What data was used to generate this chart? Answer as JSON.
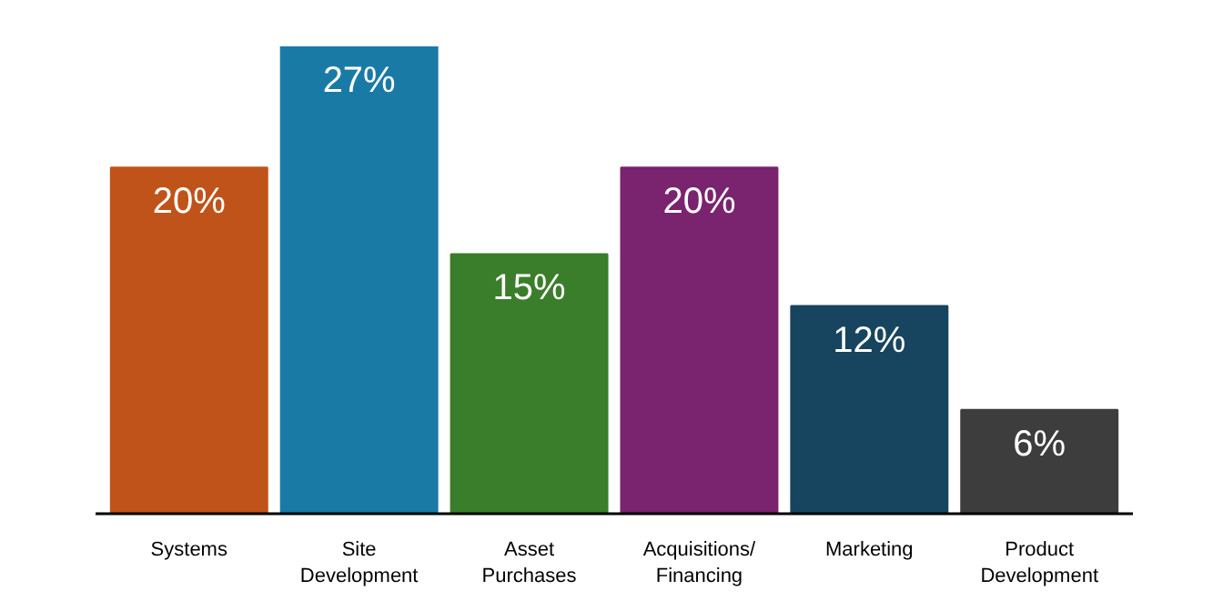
{
  "chart_data": {
    "type": "bar",
    "categories": [
      "Systems",
      "Site Development",
      "Asset Purchases",
      "Acquisitions/ Financing",
      "Marketing",
      "Product Development"
    ],
    "values": [
      20,
      27,
      15,
      20,
      12,
      6
    ],
    "value_labels": [
      "20%",
      "27%",
      "15%",
      "20%",
      "12%",
      "6%"
    ],
    "colors": [
      "#c0531a",
      "#1a7aa6",
      "#3a7d2a",
      "#7a236e",
      "#17445e",
      "#3d3d3d"
    ]
  }
}
